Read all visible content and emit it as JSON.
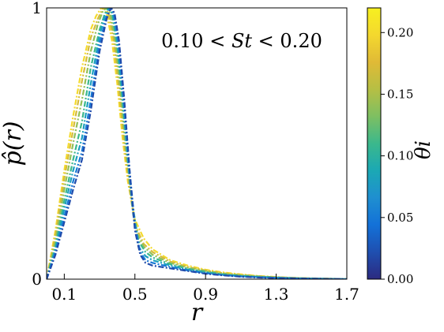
{
  "chart_data": {
    "type": "line",
    "title": "",
    "annotation": "0.10 < St < 0.20",
    "xlabel": "r",
    "ylabel": "p̂(r)",
    "xlim": [
      0.0,
      1.7
    ],
    "ylim": [
      0,
      1
    ],
    "x_ticks": [
      0.1,
      0.5,
      0.9,
      1.3,
      1.7
    ],
    "x_tick_labels": [
      "0.1",
      "0.5",
      "0.9",
      "1.3",
      "1.7"
    ],
    "y_ticks": [
      0,
      1
    ],
    "y_tick_labels": [
      "0",
      "1"
    ],
    "grid": false,
    "line_style": "dash-dot",
    "colorbar": {
      "label": "θi",
      "min": 0.0,
      "max": 0.22,
      "ticks": [
        0.0,
        0.05,
        0.1,
        0.15,
        0.2
      ],
      "tick_labels": [
        "0.00",
        "0.05",
        "0.10",
        "0.15",
        "0.20"
      ],
      "colormap": [
        "#2c2a80",
        "#1f4fb0",
        "#1371d8",
        "#1f8fd0",
        "#1ba8b4",
        "#3bb88c",
        "#7ebf62",
        "#b6bf44",
        "#e0ba36",
        "#f4d82e",
        "#f7f020"
      ]
    },
    "series_summary": "Many normalized curves; lower theta_i (blue) curves peak near r = 0.36, higher theta_i (yellow) curves peak near r = 0.32 with a slower decay tail",
    "series": [
      {
        "theta": 0.2,
        "x": [
          0.0,
          0.05,
          0.1,
          0.15,
          0.2,
          0.25,
          0.28,
          0.31,
          0.32,
          0.34,
          0.37,
          0.4,
          0.43,
          0.46,
          0.5,
          0.55,
          0.6,
          0.7,
          0.8,
          0.9,
          1.0,
          1.1,
          1.2,
          1.3,
          1.4,
          1.5,
          1.6,
          1.7
        ],
        "y": [
          0.0,
          0.18,
          0.4,
          0.6,
          0.78,
          0.92,
          0.97,
          1.0,
          1.0,
          0.98,
          0.88,
          0.72,
          0.52,
          0.36,
          0.22,
          0.15,
          0.11,
          0.07,
          0.05,
          0.035,
          0.025,
          0.018,
          0.012,
          0.008,
          0.005,
          0.003,
          0.002,
          0.0
        ]
      },
      {
        "theta": 0.17,
        "x": [
          0.0,
          0.05,
          0.1,
          0.15,
          0.2,
          0.25,
          0.29,
          0.32,
          0.33,
          0.35,
          0.38,
          0.41,
          0.44,
          0.47,
          0.5,
          0.55,
          0.6,
          0.7,
          0.8,
          0.9,
          1.0,
          1.1,
          1.2,
          1.3,
          1.4,
          1.5,
          1.6,
          1.7
        ],
        "y": [
          0.0,
          0.16,
          0.37,
          0.55,
          0.73,
          0.89,
          0.96,
          1.0,
          1.0,
          0.98,
          0.88,
          0.7,
          0.5,
          0.33,
          0.2,
          0.13,
          0.1,
          0.065,
          0.045,
          0.032,
          0.022,
          0.016,
          0.011,
          0.007,
          0.005,
          0.003,
          0.002,
          0.0
        ]
      },
      {
        "theta": 0.14,
        "x": [
          0.0,
          0.05,
          0.1,
          0.15,
          0.2,
          0.25,
          0.29,
          0.32,
          0.34,
          0.36,
          0.39,
          0.42,
          0.45,
          0.48,
          0.51,
          0.55,
          0.6,
          0.7,
          0.8,
          0.9,
          1.0,
          1.1,
          1.2,
          1.3,
          1.4,
          1.5,
          1.6,
          1.7
        ],
        "y": [
          0.0,
          0.14,
          0.33,
          0.5,
          0.66,
          0.84,
          0.94,
          0.99,
          1.0,
          0.98,
          0.87,
          0.68,
          0.47,
          0.3,
          0.17,
          0.12,
          0.09,
          0.06,
          0.042,
          0.03,
          0.02,
          0.014,
          0.01,
          0.007,
          0.004,
          0.003,
          0.002,
          0.0
        ]
      },
      {
        "theta": 0.11,
        "x": [
          0.0,
          0.05,
          0.1,
          0.15,
          0.2,
          0.25,
          0.3,
          0.33,
          0.35,
          0.37,
          0.4,
          0.43,
          0.46,
          0.49,
          0.52,
          0.56,
          0.6,
          0.7,
          0.8,
          0.9,
          1.0,
          1.1,
          1.2,
          1.3,
          1.4,
          1.5,
          1.6,
          1.7
        ],
        "y": [
          0.0,
          0.12,
          0.29,
          0.44,
          0.58,
          0.78,
          0.92,
          0.98,
          1.0,
          0.98,
          0.86,
          0.66,
          0.44,
          0.26,
          0.14,
          0.1,
          0.08,
          0.055,
          0.038,
          0.027,
          0.018,
          0.013,
          0.009,
          0.006,
          0.004,
          0.002,
          0.001,
          0.0
        ]
      },
      {
        "theta": 0.08,
        "x": [
          0.0,
          0.05,
          0.1,
          0.15,
          0.2,
          0.25,
          0.3,
          0.33,
          0.355,
          0.375,
          0.4,
          0.43,
          0.46,
          0.49,
          0.52,
          0.56,
          0.6,
          0.7,
          0.8,
          0.9,
          1.0,
          1.1,
          1.2,
          1.3,
          1.4,
          1.5,
          1.6,
          1.7
        ],
        "y": [
          0.0,
          0.11,
          0.26,
          0.4,
          0.52,
          0.72,
          0.9,
          0.97,
          1.0,
          0.98,
          0.88,
          0.68,
          0.44,
          0.24,
          0.12,
          0.085,
          0.07,
          0.05,
          0.035,
          0.024,
          0.016,
          0.011,
          0.008,
          0.005,
          0.003,
          0.002,
          0.001,
          0.0
        ]
      },
      {
        "theta": 0.05,
        "x": [
          0.0,
          0.05,
          0.1,
          0.15,
          0.2,
          0.25,
          0.3,
          0.335,
          0.36,
          0.38,
          0.41,
          0.44,
          0.47,
          0.5,
          0.53,
          0.56,
          0.6,
          0.7,
          0.8,
          0.9,
          1.0,
          1.1,
          1.2,
          1.3,
          1.4,
          1.5,
          1.6,
          1.7
        ],
        "y": [
          0.0,
          0.1,
          0.23,
          0.36,
          0.47,
          0.66,
          0.87,
          0.96,
          1.0,
          0.98,
          0.86,
          0.64,
          0.4,
          0.2,
          0.1,
          0.07,
          0.06,
          0.045,
          0.032,
          0.022,
          0.015,
          0.01,
          0.007,
          0.005,
          0.003,
          0.002,
          0.001,
          0.0
        ]
      },
      {
        "theta": 0.02,
        "x": [
          0.0,
          0.05,
          0.1,
          0.15,
          0.2,
          0.25,
          0.3,
          0.34,
          0.365,
          0.385,
          0.41,
          0.44,
          0.47,
          0.5,
          0.53,
          0.56,
          0.6,
          0.7,
          0.8,
          0.9,
          1.0,
          1.1,
          1.2,
          1.3,
          1.4,
          1.5,
          1.6,
          1.7
        ],
        "y": [
          0.0,
          0.09,
          0.21,
          0.33,
          0.44,
          0.62,
          0.84,
          0.96,
          1.0,
          0.98,
          0.88,
          0.66,
          0.4,
          0.18,
          0.09,
          0.06,
          0.05,
          0.04,
          0.03,
          0.02,
          0.014,
          0.009,
          0.006,
          0.004,
          0.003,
          0.002,
          0.001,
          0.0
        ]
      }
    ]
  }
}
